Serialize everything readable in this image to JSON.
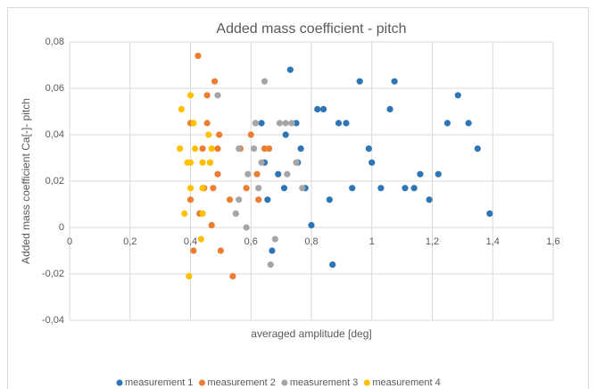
{
  "chart_data": {
    "type": "scatter",
    "title": "Added mass coefficient - pitch",
    "x_label": "averaged amplitude [deg]",
    "y_label": "Added mass coefficient Ca[-]- pitch",
    "xlim": [
      0,
      1.6
    ],
    "ylim": [
      -0.04,
      0.08
    ],
    "xticks": [
      0,
      {
        "value": 0.2,
        "label": "0,2"
      },
      {
        "value": 0.4,
        "label": "0,4"
      },
      {
        "value": 0.6,
        "label": "0,6"
      },
      {
        "value": 0.8,
        "label": "0,8"
      },
      1,
      {
        "value": 1.2,
        "label": "1,2"
      },
      {
        "value": 1.4,
        "label": "1,4"
      },
      {
        "value": 1.6,
        "label": "1,6"
      }
    ],
    "yticks": [
      {
        "value": -0.04,
        "label": "-0,04"
      },
      {
        "value": -0.02,
        "label": "-0,02"
      },
      0,
      {
        "value": 0.02,
        "label": "0,02"
      },
      {
        "value": 0.04,
        "label": "0,04"
      },
      {
        "value": 0.06,
        "label": "0,06"
      },
      {
        "value": 0.08,
        "label": "0,08"
      }
    ],
    "grid": true,
    "legend": "bottom",
    "series": [
      {
        "name": "measurement 1",
        "color": "#2e75b6",
        "x": [
          0.73,
          0.635,
          0.75,
          0.715,
          0.765,
          0.69,
          0.655,
          0.71,
          0.78,
          0.8,
          0.755,
          0.645,
          0.82,
          0.84,
          0.89,
          0.915,
          0.86,
          0.87,
          0.67,
          0.935,
          0.96,
          0.99,
          1.0,
          1.03,
          1.06,
          1.075,
          1.11,
          1.14,
          1.16,
          1.19,
          1.22,
          1.25,
          1.285,
          1.32,
          1.35,
          1.39
        ],
        "values": [
          0.068,
          0.045,
          0.045,
          0.04,
          0.034,
          0.023,
          0.012,
          0.017,
          0.017,
          0.001,
          0.028,
          0.028,
          0.051,
          0.051,
          0.045,
          0.045,
          0.012,
          -0.016,
          -0.01,
          0.017,
          0.063,
          0.034,
          0.028,
          0.017,
          0.051,
          0.063,
          0.017,
          0.017,
          0.023,
          0.012,
          0.023,
          0.045,
          0.057,
          0.045,
          0.034,
          0.006
        ]
      },
      {
        "name": "measurement 2",
        "color": "#ed7d31",
        "x": [
          0.425,
          0.48,
          0.455,
          0.4,
          0.455,
          0.615,
          0.495,
          0.44,
          0.49,
          0.565,
          0.645,
          0.6,
          0.465,
          0.49,
          0.62,
          0.445,
          0.475,
          0.585,
          0.53,
          0.4,
          0.47,
          0.41,
          0.5,
          0.54,
          0.66,
          0.625,
          0.43
        ],
        "values": [
          0.074,
          0.063,
          0.057,
          0.045,
          0.045,
          0.045,
          0.04,
          0.034,
          0.034,
          0.034,
          0.034,
          0.04,
          0.028,
          0.023,
          0.023,
          0.017,
          0.017,
          0.017,
          0.012,
          0.012,
          0.001,
          -0.01,
          -0.01,
          -0.021,
          0.034,
          0.012,
          0.006
        ]
      },
      {
        "name": "measurement 3",
        "color": "#a5a5a5",
        "x": [
          0.645,
          0.49,
          0.615,
          0.695,
          0.715,
          0.735,
          0.61,
          0.56,
          0.635,
          0.75,
          0.59,
          0.72,
          0.625,
          0.77,
          0.56,
          0.55,
          0.585,
          0.68,
          0.665
        ],
        "values": [
          0.063,
          0.057,
          0.045,
          0.045,
          0.045,
          0.045,
          0.034,
          0.034,
          0.028,
          0.028,
          0.023,
          0.023,
          0.017,
          0.017,
          0.012,
          0.006,
          0.0,
          -0.005,
          -0.016
        ]
      },
      {
        "name": "measurement 4",
        "color": "#ffc000",
        "x": [
          0.4,
          0.37,
          0.41,
          0.46,
          0.365,
          0.415,
          0.47,
          0.39,
          0.44,
          0.465,
          0.4,
          0.44,
          0.44,
          0.38,
          0.435,
          0.395,
          0.4
        ],
        "values": [
          0.057,
          0.051,
          0.045,
          0.04,
          0.034,
          0.034,
          0.034,
          0.028,
          0.028,
          0.028,
          0.017,
          0.017,
          0.006,
          0.006,
          -0.005,
          -0.021,
          0.028
        ]
      }
    ]
  }
}
